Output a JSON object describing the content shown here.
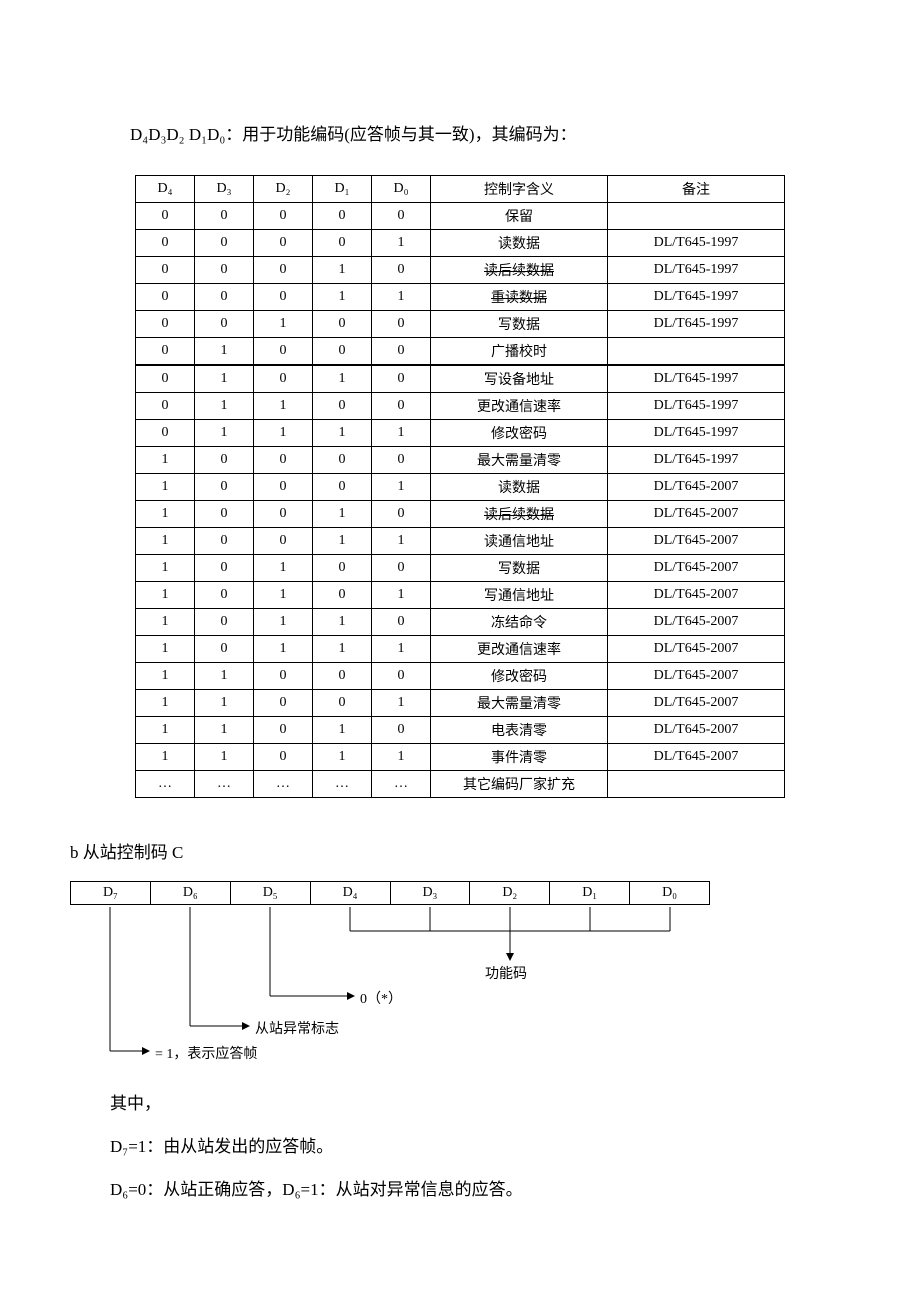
{
  "intro": "D₄D₃D₂ D₁D₀：用于功能编码(应答帧与其一致)，其编码为：",
  "table": {
    "headers": [
      "D₄",
      "D₃",
      "D₂",
      "D₁",
      "D₀",
      "控制字含义",
      "备注"
    ],
    "rows": [
      {
        "d": [
          "0",
          "0",
          "0",
          "0",
          "0"
        ],
        "meaning": "保留",
        "remark": "",
        "strike": false
      },
      {
        "d": [
          "0",
          "0",
          "0",
          "0",
          "1"
        ],
        "meaning": "读数据",
        "remark": "DL/T645-1997",
        "strike": false
      },
      {
        "d": [
          "0",
          "0",
          "0",
          "1",
          "0"
        ],
        "meaning": "读后续数据",
        "remark": "DL/T645-1997",
        "strike": true
      },
      {
        "d": [
          "0",
          "0",
          "0",
          "1",
          "1"
        ],
        "meaning": "重读数据",
        "remark": "DL/T645-1997",
        "strike": true
      },
      {
        "d": [
          "0",
          "0",
          "1",
          "0",
          "0"
        ],
        "meaning": "写数据",
        "remark": "DL/T645-1997",
        "strike": false
      },
      {
        "d": [
          "0",
          "1",
          "0",
          "0",
          "0"
        ],
        "meaning": "广播校时",
        "remark": "",
        "strike": false,
        "thick": true
      },
      {
        "d": [
          "0",
          "1",
          "0",
          "1",
          "0"
        ],
        "meaning": "写设备地址",
        "remark": "DL/T645-1997",
        "strike": false
      },
      {
        "d": [
          "0",
          "1",
          "1",
          "0",
          "0"
        ],
        "meaning": "更改通信速率",
        "remark": "DL/T645-1997",
        "strike": false
      },
      {
        "d": [
          "0",
          "1",
          "1",
          "1",
          "1"
        ],
        "meaning": "修改密码",
        "remark": "DL/T645-1997",
        "strike": false
      },
      {
        "d": [
          "1",
          "0",
          "0",
          "0",
          "0"
        ],
        "meaning": "最大需量清零",
        "remark": "DL/T645-1997",
        "strike": false
      },
      {
        "d": [
          "1",
          "0",
          "0",
          "0",
          "1"
        ],
        "meaning": "读数据",
        "remark": "DL/T645-2007",
        "strike": false
      },
      {
        "d": [
          "1",
          "0",
          "0",
          "1",
          "0"
        ],
        "meaning": "读后续数据",
        "remark": "DL/T645-2007",
        "strike": true
      },
      {
        "d": [
          "1",
          "0",
          "0",
          "1",
          "1"
        ],
        "meaning": "读通信地址",
        "remark": "DL/T645-2007",
        "strike": false
      },
      {
        "d": [
          "1",
          "0",
          "1",
          "0",
          "0"
        ],
        "meaning": "写数据",
        "remark": "DL/T645-2007",
        "strike": false
      },
      {
        "d": [
          "1",
          "0",
          "1",
          "0",
          "1"
        ],
        "meaning": "写通信地址",
        "remark": "DL/T645-2007",
        "strike": false
      },
      {
        "d": [
          "1",
          "0",
          "1",
          "1",
          "0"
        ],
        "meaning": "冻结命令",
        "remark": "DL/T645-2007",
        "strike": false
      },
      {
        "d": [
          "1",
          "0",
          "1",
          "1",
          "1"
        ],
        "meaning": "更改通信速率",
        "remark": "DL/T645-2007",
        "strike": false
      },
      {
        "d": [
          "1",
          "1",
          "0",
          "0",
          "0"
        ],
        "meaning": "修改密码",
        "remark": "DL/T645-2007",
        "strike": false
      },
      {
        "d": [
          "1",
          "1",
          "0",
          "0",
          "1"
        ],
        "meaning": "最大需量清零",
        "remark": "DL/T645-2007",
        "strike": false
      },
      {
        "d": [
          "1",
          "1",
          "0",
          "1",
          "0"
        ],
        "meaning": "电表清零",
        "remark": "DL/T645-2007",
        "strike": false
      },
      {
        "d": [
          "1",
          "1",
          "0",
          "1",
          "1"
        ],
        "meaning": "事件清零",
        "remark": "DL/T645-2007",
        "strike": false
      },
      {
        "d": [
          "…",
          "…",
          "…",
          "…",
          "…"
        ],
        "meaning": "其它编码厂家扩充",
        "remark": "",
        "strike": false
      }
    ]
  },
  "sectionB": "b  从站控制码 C",
  "bitLabels": [
    "D₇",
    "D₆",
    "D₅",
    "D₄",
    "D₃",
    "D₂",
    "D₁",
    "D₀"
  ],
  "diagram": {
    "func": "功能码",
    "zero": "0（*）",
    "abnormal": "从站异常标志",
    "response": "= 1，表示应答帧"
  },
  "paragraphs": {
    "p1": "其中，",
    "p2": "D₇=1：由从站发出的应答帧。",
    "p3": "D₆=0：从站正确应答，D₆=1：从站对异常信息的应答。"
  }
}
